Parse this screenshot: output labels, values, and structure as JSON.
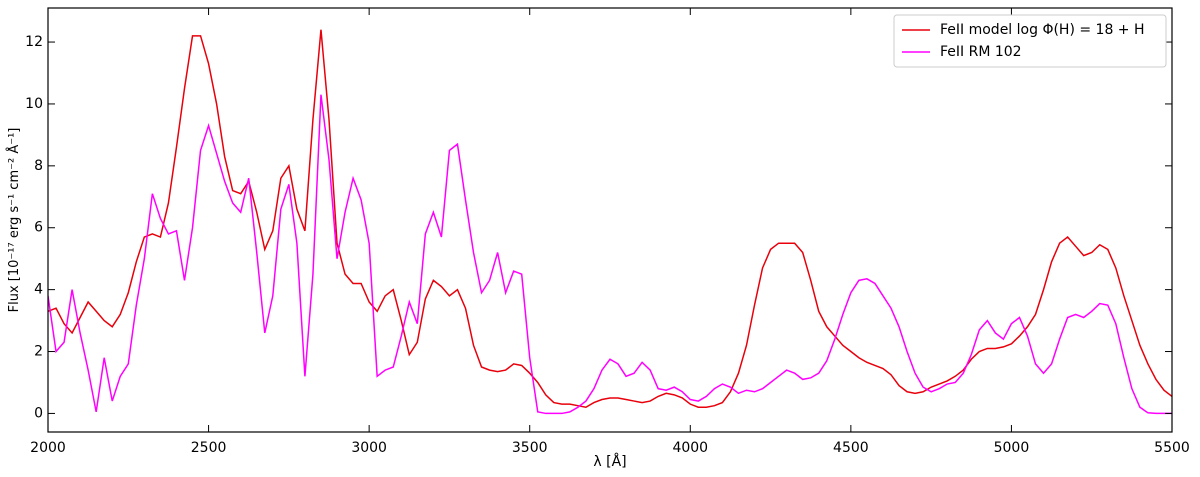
{
  "chart_data": {
    "type": "line",
    "xlabel": "λ [Å]",
    "ylabel": "Flux [10⁻¹⁷ erg s⁻¹ cm⁻² Å⁻¹]",
    "xlim": [
      2000,
      5500
    ],
    "ylim": [
      -0.6,
      13.1
    ],
    "xticks": [
      2000,
      2500,
      3000,
      3500,
      4000,
      4500,
      5000,
      5500
    ],
    "yticks": [
      0,
      2,
      4,
      6,
      8,
      10,
      12
    ],
    "grid": false,
    "legend": "upper right",
    "x": [
      2000,
      2025,
      2050,
      2075,
      2100,
      2125,
      2150,
      2175,
      2200,
      2225,
      2250,
      2275,
      2300,
      2325,
      2350,
      2375,
      2400,
      2425,
      2450,
      2475,
      2500,
      2525,
      2550,
      2575,
      2600,
      2625,
      2650,
      2675,
      2700,
      2725,
      2750,
      2775,
      2800,
      2825,
      2850,
      2875,
      2900,
      2925,
      2950,
      2975,
      3000,
      3025,
      3050,
      3075,
      3100,
      3125,
      3150,
      3175,
      3200,
      3225,
      3250,
      3275,
      3300,
      3325,
      3350,
      3375,
      3400,
      3425,
      3450,
      3475,
      3500,
      3525,
      3550,
      3575,
      3600,
      3625,
      3650,
      3675,
      3700,
      3725,
      3750,
      3775,
      3800,
      3825,
      3850,
      3875,
      3900,
      3925,
      3950,
      3975,
      4000,
      4025,
      4050,
      4075,
      4100,
      4125,
      4150,
      4175,
      4200,
      4225,
      4250,
      4275,
      4300,
      4325,
      4350,
      4375,
      4400,
      4425,
      4450,
      4475,
      4500,
      4525,
      4550,
      4575,
      4600,
      4625,
      4650,
      4675,
      4700,
      4725,
      4750,
      4775,
      4800,
      4825,
      4850,
      4875,
      4900,
      4925,
      4950,
      4975,
      5000,
      5025,
      5050,
      5075,
      5100,
      5125,
      5150,
      5175,
      5200,
      5225,
      5250,
      5275,
      5300,
      5325,
      5350,
      5375,
      5400,
      5425,
      5450,
      5475,
      5500
    ],
    "series": [
      {
        "name": "FeII model log Φ(H) = 18 + H",
        "color": "#e8000b",
        "values": [
          3.3,
          3.4,
          2.9,
          2.6,
          3.1,
          3.6,
          3.3,
          3.0,
          2.8,
          3.2,
          3.9,
          4.9,
          5.7,
          5.8,
          5.7,
          6.8,
          8.6,
          10.5,
          12.2,
          12.2,
          11.3,
          10.0,
          8.3,
          7.2,
          7.1,
          7.5,
          6.5,
          5.3,
          5.9,
          7.6,
          8.0,
          6.6,
          5.9,
          9.5,
          12.4,
          9.5,
          5.5,
          4.5,
          4.2,
          4.2,
          3.6,
          3.3,
          3.8,
          4.0,
          3.0,
          1.9,
          2.3,
          3.7,
          4.3,
          4.1,
          3.8,
          4.0,
          3.4,
          2.2,
          1.5,
          1.4,
          1.35,
          1.4,
          1.6,
          1.55,
          1.3,
          1.0,
          0.6,
          0.35,
          0.3,
          0.3,
          0.25,
          0.2,
          0.35,
          0.45,
          0.5,
          0.5,
          0.45,
          0.4,
          0.35,
          0.4,
          0.55,
          0.65,
          0.6,
          0.5,
          0.3,
          0.2,
          0.2,
          0.25,
          0.35,
          0.7,
          1.3,
          2.2,
          3.5,
          4.7,
          5.3,
          5.5,
          5.5,
          5.5,
          5.2,
          4.3,
          3.3,
          2.8,
          2.5,
          2.2,
          2.0,
          1.8,
          1.65,
          1.55,
          1.45,
          1.25,
          0.9,
          0.7,
          0.65,
          0.7,
          0.85,
          0.95,
          1.05,
          1.2,
          1.4,
          1.75,
          2.0,
          2.1,
          2.1,
          2.15,
          2.25,
          2.5,
          2.8,
          3.2,
          4.0,
          4.9,
          5.5,
          5.7,
          5.4,
          5.1,
          5.2,
          5.45,
          5.3,
          4.7,
          3.8,
          3.0,
          2.2,
          1.6,
          1.1,
          0.75,
          0.55
        ]
      },
      {
        "name": "FeII RM 102",
        "color": "#ff00ff",
        "values": [
          3.8,
          2.0,
          2.3,
          4.0,
          2.6,
          1.4,
          0.05,
          1.8,
          0.4,
          1.2,
          1.6,
          3.5,
          5.0,
          7.1,
          6.3,
          5.8,
          5.9,
          4.3,
          6.0,
          8.5,
          9.3,
          8.4,
          7.5,
          6.8,
          6.5,
          7.6,
          5.2,
          2.6,
          3.8,
          6.6,
          7.4,
          5.5,
          1.2,
          4.5,
          10.3,
          8.2,
          5.0,
          6.5,
          7.6,
          6.9,
          5.5,
          1.2,
          1.4,
          1.5,
          2.5,
          3.6,
          2.9,
          5.8,
          6.5,
          5.7,
          8.5,
          8.7,
          6.9,
          5.2,
          3.9,
          4.3,
          5.2,
          3.9,
          4.6,
          4.5,
          1.8,
          0.05,
          0,
          0,
          0,
          0.05,
          0.2,
          0.4,
          0.8,
          1.4,
          1.75,
          1.6,
          1.2,
          1.3,
          1.65,
          1.4,
          0.8,
          0.75,
          0.85,
          0.7,
          0.45,
          0.4,
          0.55,
          0.8,
          0.95,
          0.85,
          0.65,
          0.75,
          0.7,
          0.8,
          1.0,
          1.2,
          1.4,
          1.3,
          1.1,
          1.15,
          1.3,
          1.7,
          2.4,
          3.2,
          3.9,
          4.3,
          4.35,
          4.2,
          3.8,
          3.4,
          2.8,
          2.0,
          1.3,
          0.85,
          0.7,
          0.8,
          0.95,
          1.0,
          1.3,
          1.9,
          2.7,
          3.0,
          2.6,
          2.4,
          2.9,
          3.1,
          2.5,
          1.6,
          1.3,
          1.6,
          2.4,
          3.1,
          3.2,
          3.1,
          3.3,
          3.55,
          3.5,
          2.9,
          1.8,
          0.8,
          0.2,
          0.02,
          0,
          0,
          0
        ]
      }
    ]
  }
}
